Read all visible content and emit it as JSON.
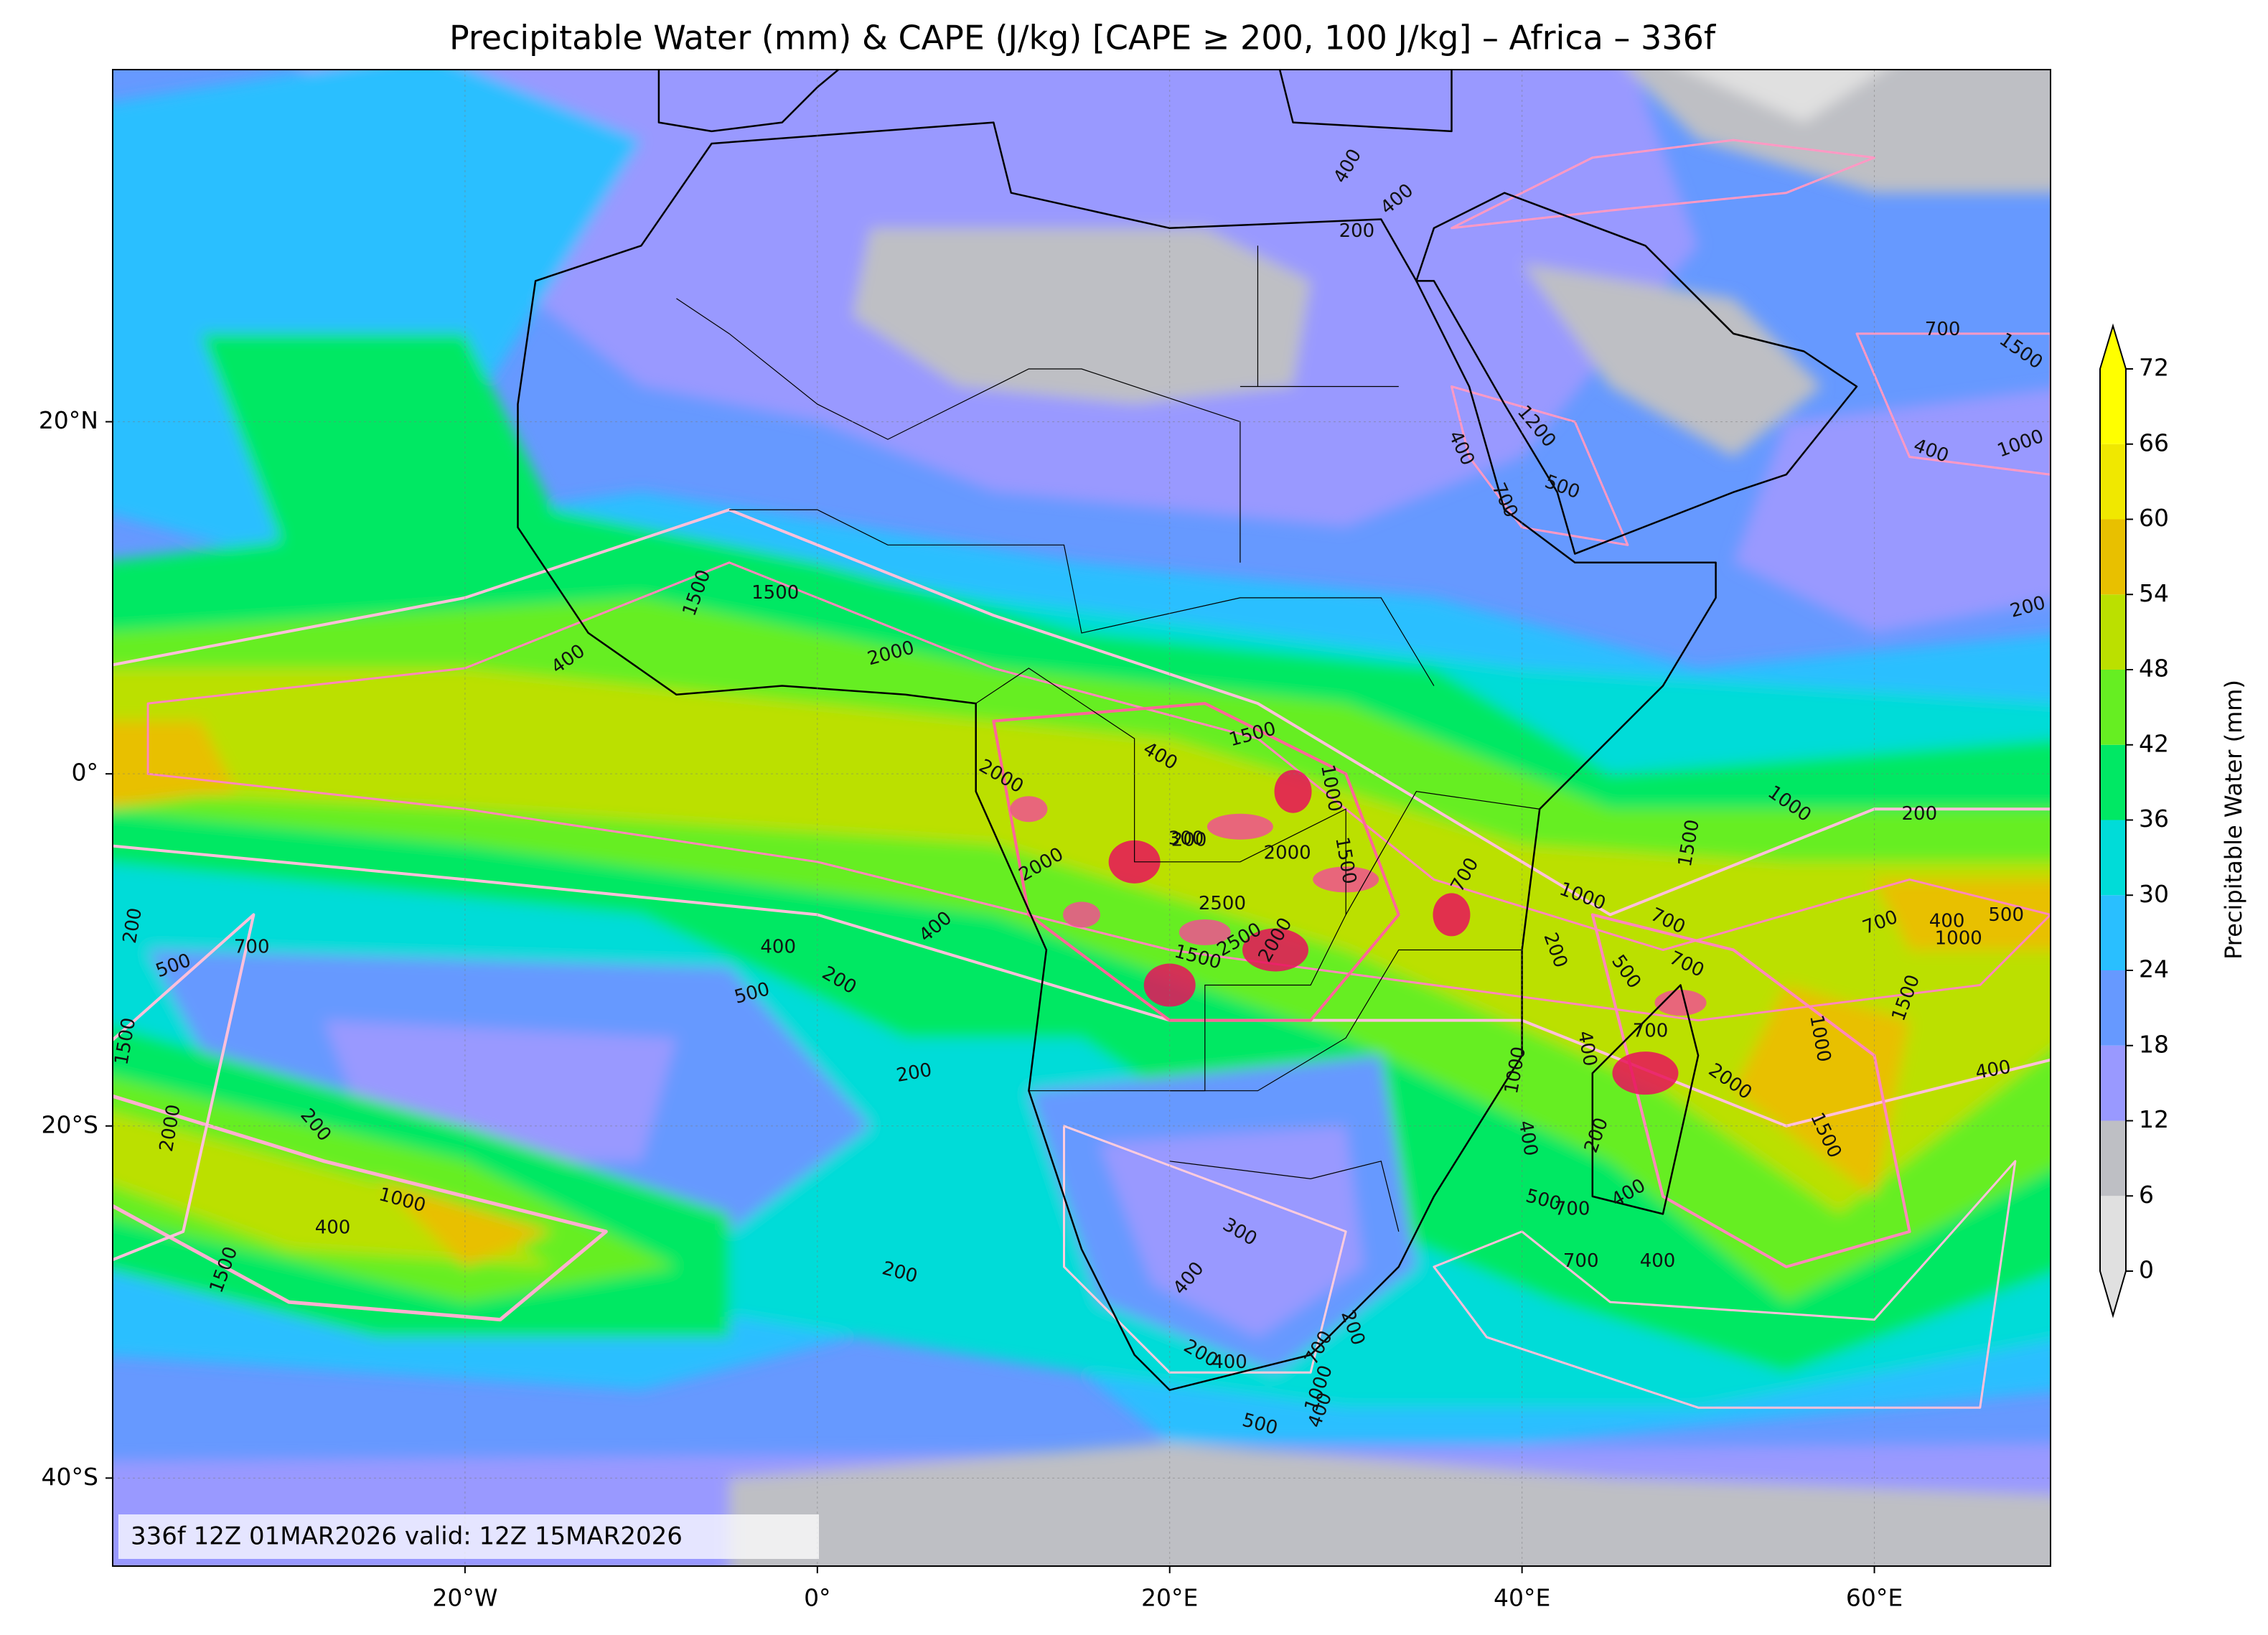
{
  "title": "Precipitable Water (mm) & CAPE (J/kg) [CAPE ≥ 200, 100 J/kg] – Africa – 336f",
  "map": {
    "lon_range": [
      -40,
      70
    ],
    "lat_range": [
      -45,
      40
    ],
    "lon_ticks": [
      {
        "value": -20,
        "label": "20°W"
      },
      {
        "value": 0,
        "label": "0°"
      },
      {
        "value": 20,
        "label": "20°E"
      },
      {
        "value": 40,
        "label": "40°E"
      },
      {
        "value": 60,
        "label": "60°E"
      }
    ],
    "lat_ticks": [
      {
        "value": 20,
        "label": "20°N"
      },
      {
        "value": 0,
        "label": "0°"
      },
      {
        "value": -20,
        "label": "20°S"
      },
      {
        "value": -40,
        "label": "40°S"
      }
    ],
    "grid": true
  },
  "colorbar": {
    "label": "Precipitable Water (mm)",
    "levels": [
      0,
      6,
      12,
      18,
      24,
      30,
      36,
      42,
      48,
      54,
      60,
      66,
      72
    ],
    "colors": [
      "#e0e0e0",
      "#bebfc4",
      "#9999ff",
      "#6699ff",
      "#29bfff",
      "#00dcd8",
      "#00e864",
      "#66ee22",
      "#bbe000",
      "#e8c000",
      "#f0e800",
      "#ffff00"
    ],
    "extend": "both"
  },
  "contour_labels": [
    400,
    400,
    200,
    700,
    1500,
    1200,
    400,
    500,
    700,
    400,
    1000,
    200,
    1500,
    1500,
    400,
    2000,
    1500,
    400,
    2000,
    1000,
    1000,
    200,
    1500,
    200,
    2000,
    1500,
    2000,
    700,
    1000,
    700,
    700,
    2500,
    700,
    400,
    500,
    1000,
    400,
    200,
    400,
    700,
    500,
    500,
    1500,
    2500,
    2000,
    200,
    500,
    1500,
    700,
    1000,
    400,
    1000,
    2000,
    400,
    200,
    1500,
    2000,
    200,
    1500,
    400,
    200,
    1000,
    400,
    500,
    700,
    400,
    300,
    1500,
    200,
    700,
    400,
    400,
    200,
    400,
    200,
    700,
    1000,
    500,
    400,
    200,
    300
  ],
  "footer": "336f 12Z 01MAR2026 valid: 12Z 15MAR2026"
}
